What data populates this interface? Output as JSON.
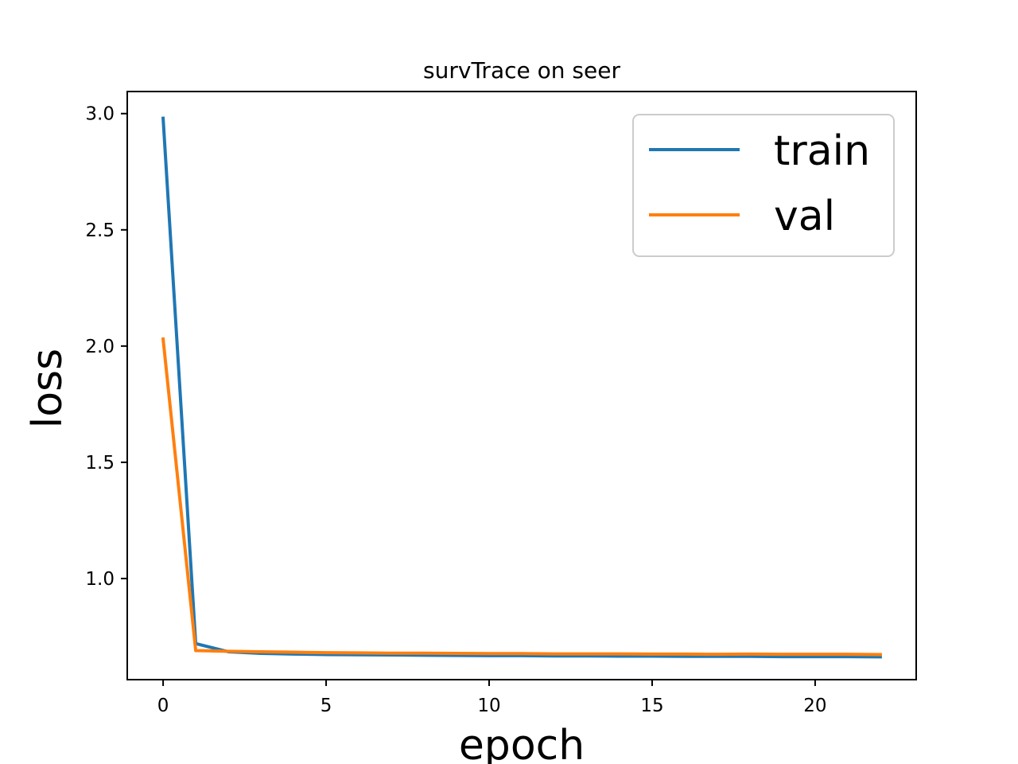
{
  "chart_data": {
    "type": "line",
    "title": "survTrace on seer",
    "xlabel": "epoch",
    "ylabel": "loss",
    "xlim": [
      -1.1,
      23.1
    ],
    "ylim": [
      0.565,
      3.095
    ],
    "xticks": [
      0,
      5,
      10,
      15,
      20
    ],
    "yticks": [
      1.0,
      1.5,
      2.0,
      2.5,
      3.0
    ],
    "xtick_labels": [
      "0",
      "5",
      "10",
      "15",
      "20"
    ],
    "ytick_labels": [
      "1.0",
      "1.5",
      "2.0",
      "2.5",
      "3.0"
    ],
    "grid": false,
    "legend_position": "top-right",
    "x": [
      0,
      1,
      2,
      3,
      4,
      5,
      6,
      7,
      8,
      9,
      10,
      11,
      12,
      13,
      14,
      15,
      16,
      17,
      18,
      19,
      20,
      21,
      22
    ],
    "series": [
      {
        "name": "train",
        "color": "#1f77b4",
        "values": [
          2.98,
          0.72,
          0.685,
          0.678,
          0.675,
          0.673,
          0.672,
          0.671,
          0.67,
          0.669,
          0.668,
          0.668,
          0.667,
          0.667,
          0.666,
          0.666,
          0.665,
          0.665,
          0.665,
          0.664,
          0.664,
          0.664,
          0.663
        ]
      },
      {
        "name": "val",
        "color": "#ff7f0e",
        "values": [
          2.03,
          0.69,
          0.687,
          0.685,
          0.683,
          0.681,
          0.68,
          0.679,
          0.679,
          0.678,
          0.677,
          0.677,
          0.676,
          0.676,
          0.676,
          0.675,
          0.675,
          0.674,
          0.675,
          0.674,
          0.674,
          0.674,
          0.673
        ]
      }
    ]
  }
}
